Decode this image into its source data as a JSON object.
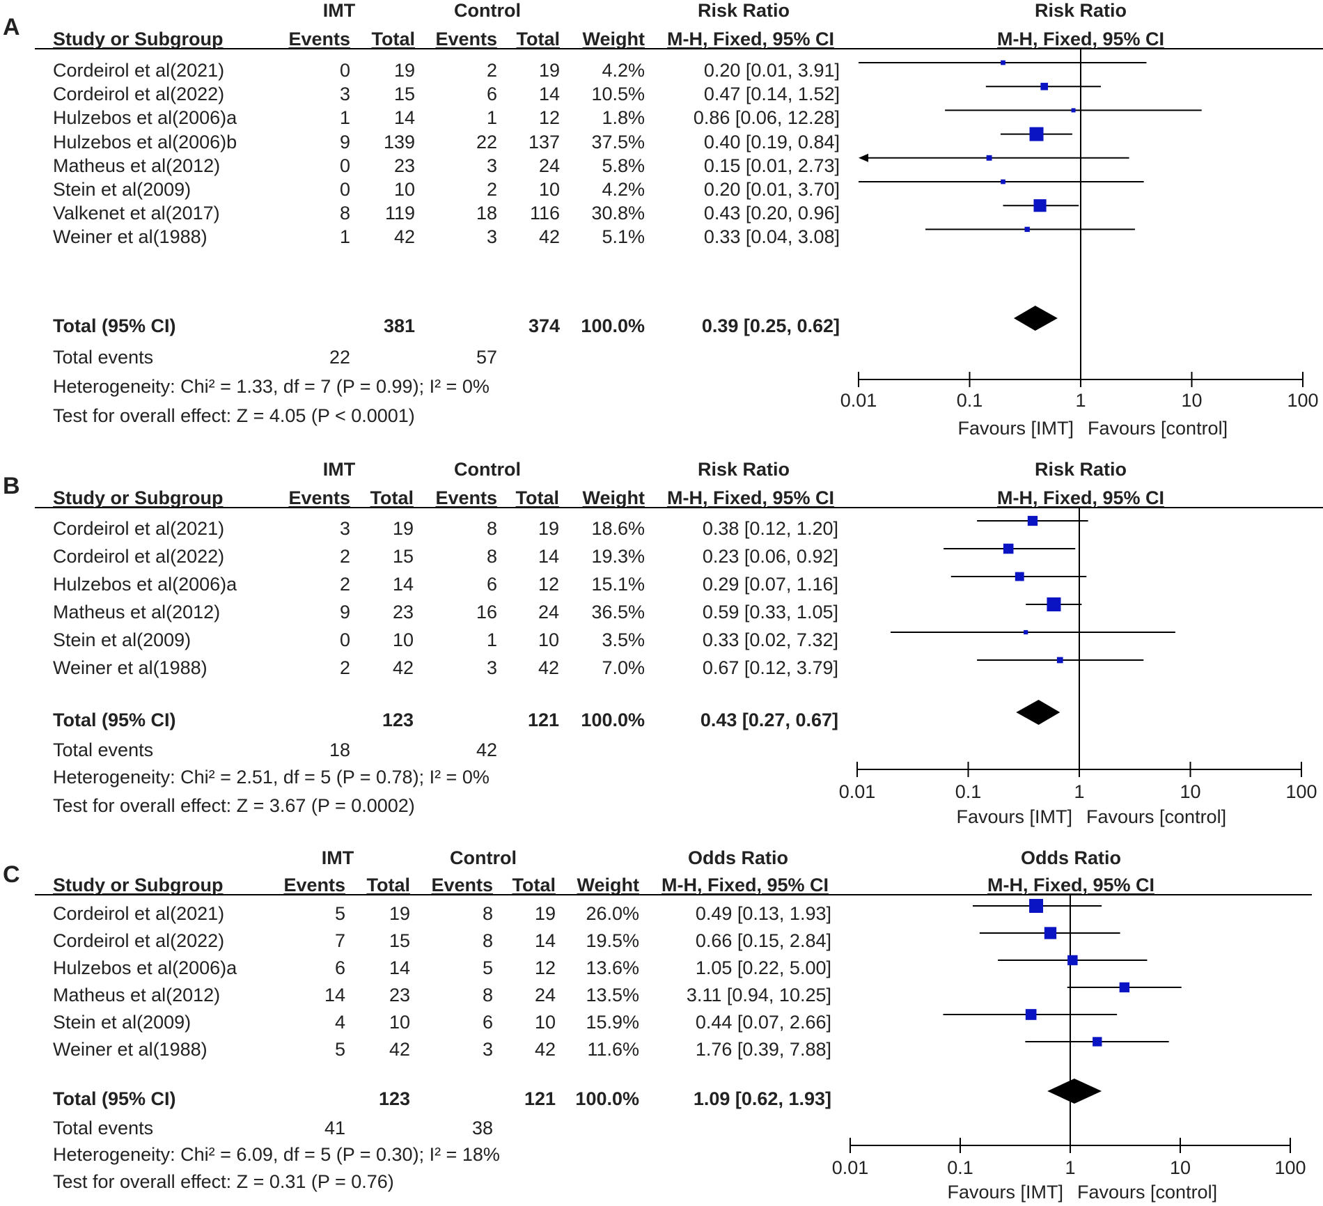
{
  "chart_data": [
    {
      "type": "forest",
      "panel_label": "A",
      "group1": "IMT",
      "group2": "Control",
      "stat_top": "Risk Ratio",
      "stat_method": "M-H, Fixed, 95% CI",
      "col_study": "Study or Subgroup",
      "col_events": "Events",
      "col_total": "Total",
      "col_weight": "Weight",
      "studies": [
        {
          "name": "Cordeirol et al(2021)",
          "e1": "0",
          "n1": "19",
          "e2": "2",
          "n2": "19",
          "weight": "4.2%",
          "ci_text": "0.20 [0.01, 3.91]",
          "est": 0.2,
          "lo": 0.01,
          "hi": 3.91,
          "w": 4.2
        },
        {
          "name": "Cordeirol et al(2022)",
          "e1": "3",
          "n1": "15",
          "e2": "6",
          "n2": "14",
          "weight": "10.5%",
          "ci_text": "0.47 [0.14, 1.52]",
          "est": 0.47,
          "lo": 0.14,
          "hi": 1.52,
          "w": 10.5
        },
        {
          "name": "Hulzebos et al(2006)a",
          "e1": "1",
          "n1": "14",
          "e2": "1",
          "n2": "12",
          "weight": "1.8%",
          "ci_text": "0.86 [0.06, 12.28]",
          "est": 0.86,
          "lo": 0.06,
          "hi": 12.28,
          "w": 1.8
        },
        {
          "name": "Hulzebos et al(2006)b",
          "e1": "9",
          "n1": "139",
          "e2": "22",
          "n2": "137",
          "weight": "37.5%",
          "ci_text": "0.40 [0.19, 0.84]",
          "est": 0.4,
          "lo": 0.19,
          "hi": 0.84,
          "w": 37.5
        },
        {
          "name": "Matheus et al(2012)",
          "e1": "0",
          "n1": "23",
          "e2": "3",
          "n2": "24",
          "weight": "5.8%",
          "ci_text": "0.15 [0.01, 2.73]",
          "est": 0.15,
          "lo": 0.01,
          "hi": 2.73,
          "w": 5.8
        },
        {
          "name": "Stein et al(2009)",
          "e1": "0",
          "n1": "10",
          "e2": "2",
          "n2": "10",
          "weight": "4.2%",
          "ci_text": "0.20 [0.01, 3.70]",
          "est": 0.2,
          "lo": 0.01,
          "hi": 3.7,
          "w": 4.2
        },
        {
          "name": "Valkenet et al(2017)",
          "e1": "8",
          "n1": "119",
          "e2": "18",
          "n2": "116",
          "weight": "30.8%",
          "ci_text": "0.43 [0.20, 0.96]",
          "est": 0.43,
          "lo": 0.2,
          "hi": 0.96,
          "w": 30.8
        },
        {
          "name": "Weiner et al(1988)",
          "e1": "1",
          "n1": "42",
          "e2": "3",
          "n2": "42",
          "weight": "5.1%",
          "ci_text": "0.33 [0.04, 3.08]",
          "est": 0.33,
          "lo": 0.04,
          "hi": 3.08,
          "w": 5.1
        }
      ],
      "total": {
        "label": "Total (95% CI)",
        "n1": "381",
        "n2": "374",
        "weight": "100.0%",
        "ci_text": "0.39 [0.25, 0.62]",
        "est": 0.39,
        "lo": 0.25,
        "hi": 0.62
      },
      "events": {
        "label": "Total events",
        "e1": "22",
        "e2": "57"
      },
      "heterogeneity": "Heterogeneity: Chi² = 1.33, df = 7 (P = 0.99); I² = 0%",
      "overall": "Test for overall effect: Z = 4.05 (P < 0.0001)",
      "ticks": [
        0.01,
        0.1,
        1,
        10,
        100
      ],
      "tick_labels": [
        "0.01",
        "0.1",
        "1",
        "10",
        "100"
      ],
      "xlim": [
        0.01,
        100
      ],
      "xscale": "log",
      "favours_left": "Favours [IMT]",
      "favours_right": "Favours [control]"
    },
    {
      "type": "forest",
      "panel_label": "B",
      "group1": "IMT",
      "group2": "Control",
      "stat_top": "Risk Ratio",
      "stat_method": "M-H, Fixed, 95% CI",
      "col_study": "Study or Subgroup",
      "col_events": "Events",
      "col_total": "Total",
      "col_weight": "Weight",
      "studies": [
        {
          "name": "Cordeirol et al(2021)",
          "e1": "3",
          "n1": "19",
          "e2": "8",
          "n2": "19",
          "weight": "18.6%",
          "ci_text": "0.38 [0.12, 1.20]",
          "est": 0.38,
          "lo": 0.12,
          "hi": 1.2,
          "w": 18.6
        },
        {
          "name": "Cordeirol et al(2022)",
          "e1": "2",
          "n1": "15",
          "e2": "8",
          "n2": "14",
          "weight": "19.3%",
          "ci_text": "0.23 [0.06, 0.92]",
          "est": 0.23,
          "lo": 0.06,
          "hi": 0.92,
          "w": 19.3
        },
        {
          "name": "Hulzebos et al(2006)a",
          "e1": "2",
          "n1": "14",
          "e2": "6",
          "n2": "12",
          "weight": "15.1%",
          "ci_text": "0.29 [0.07, 1.16]",
          "est": 0.29,
          "lo": 0.07,
          "hi": 1.16,
          "w": 15.1
        },
        {
          "name": "Matheus et al(2012)",
          "e1": "9",
          "n1": "23",
          "e2": "16",
          "n2": "24",
          "weight": "36.5%",
          "ci_text": "0.59 [0.33, 1.05]",
          "est": 0.59,
          "lo": 0.33,
          "hi": 1.05,
          "w": 36.5
        },
        {
          "name": "Stein et al(2009)",
          "e1": "0",
          "n1": "10",
          "e2": "1",
          "n2": "10",
          "weight": "3.5%",
          "ci_text": "0.33 [0.02, 7.32]",
          "est": 0.33,
          "lo": 0.02,
          "hi": 7.32,
          "w": 3.5
        },
        {
          "name": "Weiner et al(1988)",
          "e1": "2",
          "n1": "42",
          "e2": "3",
          "n2": "42",
          "weight": "7.0%",
          "ci_text": "0.67 [0.12, 3.79]",
          "est": 0.67,
          "lo": 0.12,
          "hi": 3.79,
          "w": 7.0
        }
      ],
      "total": {
        "label": "Total (95% CI)",
        "n1": "123",
        "n2": "121",
        "weight": "100.0%",
        "ci_text": "0.43 [0.27, 0.67]",
        "est": 0.43,
        "lo": 0.27,
        "hi": 0.67
      },
      "events": {
        "label": "Total events",
        "e1": "18",
        "e2": "42"
      },
      "heterogeneity": "Heterogeneity: Chi² = 2.51, df = 5 (P = 0.78); I² = 0%",
      "overall": "Test for overall effect: Z = 3.67 (P = 0.0002)",
      "ticks": [
        0.01,
        0.1,
        1,
        10,
        100
      ],
      "tick_labels": [
        "0.01",
        "0.1",
        "1",
        "10",
        "100"
      ],
      "xlim": [
        0.01,
        100
      ],
      "xscale": "log",
      "favours_left": "Favours [IMT]",
      "favours_right": "Favours [control]"
    },
    {
      "type": "forest",
      "panel_label": "C",
      "group1": "IMT",
      "group2": "Control",
      "stat_top": "Odds Ratio",
      "stat_method": "M-H, Fixed, 95% CI",
      "col_study": "Study or Subgroup",
      "col_events": "Events",
      "col_total": "Total",
      "col_weight": "Weight",
      "studies": [
        {
          "name": "Cordeirol et al(2021)",
          "e1": "5",
          "n1": "19",
          "e2": "8",
          "n2": "19",
          "weight": "26.0%",
          "ci_text": "0.49 [0.13, 1.93]",
          "est": 0.49,
          "lo": 0.13,
          "hi": 1.93,
          "w": 26.0
        },
        {
          "name": "Cordeirol et al(2022)",
          "e1": "7",
          "n1": "15",
          "e2": "8",
          "n2": "14",
          "weight": "19.5%",
          "ci_text": "0.66 [0.15, 2.84]",
          "est": 0.66,
          "lo": 0.15,
          "hi": 2.84,
          "w": 19.5
        },
        {
          "name": "Hulzebos et al(2006)a",
          "e1": "6",
          "n1": "14",
          "e2": "5",
          "n2": "12",
          "weight": "13.6%",
          "ci_text": "1.05 [0.22, 5.00]",
          "est": 1.05,
          "lo": 0.22,
          "hi": 5.0,
          "w": 13.6
        },
        {
          "name": "Matheus et al(2012)",
          "e1": "14",
          "n1": "23",
          "e2": "8",
          "n2": "24",
          "weight": "13.5%",
          "ci_text": "3.11 [0.94, 10.25]",
          "est": 3.11,
          "lo": 0.94,
          "hi": 10.25,
          "w": 13.5
        },
        {
          "name": "Stein et al(2009)",
          "e1": "4",
          "n1": "10",
          "e2": "6",
          "n2": "10",
          "weight": "15.9%",
          "ci_text": "0.44 [0.07, 2.66]",
          "est": 0.44,
          "lo": 0.07,
          "hi": 2.66,
          "w": 15.9
        },
        {
          "name": "Weiner et al(1988)",
          "e1": "5",
          "n1": "42",
          "e2": "3",
          "n2": "42",
          "weight": "11.6%",
          "ci_text": "1.76 [0.39, 7.88]",
          "est": 1.76,
          "lo": 0.39,
          "hi": 7.88,
          "w": 11.6
        }
      ],
      "total": {
        "label": "Total (95% CI)",
        "n1": "123",
        "n2": "121",
        "weight": "100.0%",
        "ci_text": "1.09 [0.62, 1.93]",
        "est": 1.09,
        "lo": 0.62,
        "hi": 1.93
      },
      "events": {
        "label": "Total events",
        "e1": "41",
        "e2": "38"
      },
      "heterogeneity": "Heterogeneity: Chi² = 6.09, df = 5 (P = 0.30); I² = 18%",
      "overall": "Test for overall effect: Z = 0.31 (P = 0.76)",
      "ticks": [
        0.01,
        0.1,
        1,
        10,
        100
      ],
      "tick_labels": [
        "0.01",
        "0.1",
        "1",
        "10",
        "100"
      ],
      "xlim": [
        0.01,
        100
      ],
      "xscale": "log",
      "favours_left": "Favours [IMT]",
      "favours_right": "Favours [control]"
    }
  ],
  "colors": {
    "marker": "#0b14c2",
    "diamond": "#000000",
    "line": "#000000",
    "text": "#222222"
  }
}
